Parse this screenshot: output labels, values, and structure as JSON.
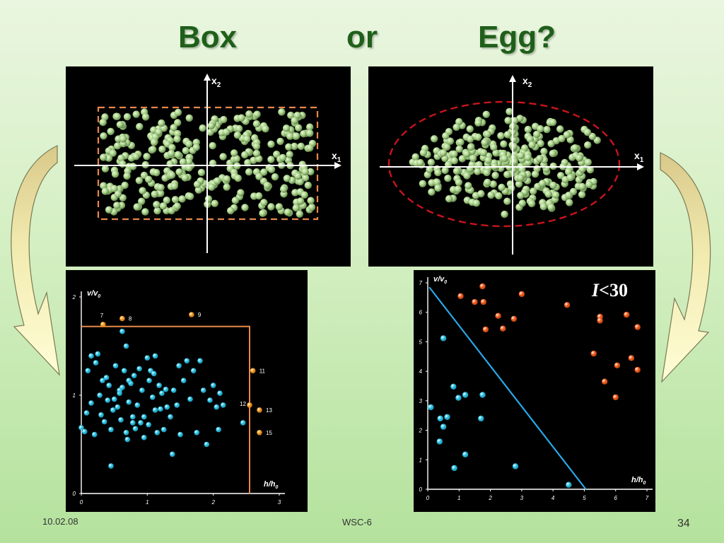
{
  "slide": {
    "title": {
      "word1": "Box",
      "word2": "or",
      "word3": "Egg?"
    },
    "footer": {
      "date": "10.02.08",
      "center": "WSC-6",
      "page": "34"
    }
  },
  "box_diagram": {
    "axis_x_label": "x",
    "axis_x_sub": "1",
    "axis_y_label": "x",
    "axis_y_sub": "2",
    "dot_color": "#a9d38a",
    "boundary_color": "#e8874a"
  },
  "egg_diagram": {
    "axis_x_label": "x",
    "axis_x_sub": "1",
    "axis_y_label": "x",
    "axis_y_sub": "2",
    "dot_color": "#a9d38a",
    "boundary_color": "#c8151c"
  },
  "chart_data": [
    {
      "type": "scatter",
      "title": "",
      "xlabel": "h/h",
      "xlabel_sub": "0",
      "ylabel": "v/v",
      "ylabel_sub": "0",
      "xlim": [
        0,
        3
      ],
      "ylim": [
        0,
        2
      ],
      "xticks": [
        "0",
        "1",
        "2",
        "3"
      ],
      "yticks": [
        "0",
        "1",
        "2"
      ],
      "boundary": {
        "x": 2.55,
        "y": 1.7,
        "color": "#e8874a"
      },
      "series": [
        {
          "color": "#29c3e8",
          "points": [
            [
              0.0,
              0.67
            ],
            [
              0.05,
              0.63
            ],
            [
              0.08,
              0.82
            ],
            [
              0.1,
              1.25
            ],
            [
              0.15,
              1.4
            ],
            [
              0.22,
              1.33
            ],
            [
              0.25,
              1.42
            ],
            [
              0.28,
              1.0
            ],
            [
              0.3,
              0.8
            ],
            [
              0.32,
              1.15
            ],
            [
              0.35,
              0.73
            ],
            [
              0.38,
              1.18
            ],
            [
              0.4,
              0.95
            ],
            [
              0.42,
              1.1
            ],
            [
              0.45,
              0.65
            ],
            [
              0.48,
              0.85
            ],
            [
              0.5,
              0.96
            ],
            [
              0.52,
              1.3
            ],
            [
              0.55,
              0.88
            ],
            [
              0.58,
              1.02
            ],
            [
              0.6,
              0.75
            ],
            [
              0.62,
              1.08
            ],
            [
              0.65,
              1.25
            ],
            [
              0.68,
              0.62
            ],
            [
              0.7,
              0.55
            ],
            [
              0.72,
              0.93
            ],
            [
              0.75,
              1.12
            ],
            [
              0.78,
              0.78
            ],
            [
              0.8,
              1.2
            ],
            [
              0.82,
              0.66
            ],
            [
              0.85,
              0.9
            ],
            [
              0.88,
              1.27
            ],
            [
              0.9,
              0.72
            ],
            [
              0.92,
              1.05
            ],
            [
              0.95,
              0.57
            ],
            [
              1.0,
              1.38
            ],
            [
              1.02,
              0.7
            ],
            [
              1.05,
              1.25
            ],
            [
              1.08,
              0.98
            ],
            [
              1.1,
              1.22
            ],
            [
              1.12,
              0.85
            ],
            [
              1.15,
              0.62
            ],
            [
              1.18,
              1.1
            ],
            [
              1.2,
              0.86
            ],
            [
              1.22,
              1.02
            ],
            [
              1.25,
              0.65
            ],
            [
              1.28,
              1.06
            ],
            [
              1.3,
              0.88
            ],
            [
              1.35,
              0.78
            ],
            [
              1.38,
              0.4
            ],
            [
              1.4,
              1.05
            ],
            [
              1.45,
              0.9
            ],
            [
              1.48,
              1.3
            ],
            [
              1.5,
              0.6
            ],
            [
              1.55,
              1.15
            ],
            [
              1.6,
              1.35
            ],
            [
              1.65,
              0.96
            ],
            [
              1.7,
              1.25
            ],
            [
              1.75,
              0.62
            ],
            [
              1.8,
              1.35
            ],
            [
              1.85,
              1.05
            ],
            [
              1.9,
              0.5
            ],
            [
              1.95,
              0.95
            ],
            [
              2.0,
              1.1
            ],
            [
              2.05,
              0.88
            ],
            [
              2.08,
              0.65
            ],
            [
              2.1,
              1.02
            ],
            [
              2.15,
              0.9
            ],
            [
              0.2,
              0.6
            ],
            [
              0.15,
              0.92
            ],
            [
              0.45,
              0.28
            ],
            [
              0.62,
              1.65
            ],
            [
              0.68,
              1.5
            ],
            [
              1.12,
              1.4
            ],
            [
              2.45,
              0.72
            ],
            [
              0.58,
              1.05
            ],
            [
              0.78,
              0.72
            ],
            [
              0.95,
              0.78
            ],
            [
              1.03,
              1.15
            ],
            [
              0.72,
              1.15
            ]
          ]
        },
        {
          "color": "#f59a1a",
          "points": [
            [
              0.33,
              1.72
            ],
            [
              0.62,
              1.78
            ],
            [
              1.67,
              1.82
            ],
            [
              2.6,
              1.25
            ],
            [
              2.55,
              0.9
            ],
            [
              2.7,
              0.85
            ],
            [
              2.7,
              0.62
            ]
          ],
          "labels": [
            "7",
            "8",
            "9",
            "11",
            "12",
            "13",
            "15"
          ]
        }
      ]
    },
    {
      "type": "scatter",
      "title": "",
      "annotation": {
        "symbol": "I",
        "text": "<30"
      },
      "xlabel": "h/h",
      "xlabel_sub": "0",
      "ylabel": "v/v",
      "ylabel_sub": "0",
      "xlim": [
        0,
        7
      ],
      "ylim": [
        0,
        7
      ],
      "xticks": [
        "0",
        "1",
        "2",
        "3",
        "4",
        "5",
        "6",
        "7"
      ],
      "yticks": [
        "0",
        "1",
        "2",
        "3",
        "4",
        "5",
        "6",
        "7"
      ],
      "line": {
        "x1": 0.05,
        "y1": 6.85,
        "x2": 5.05,
        "y2": 0.0,
        "color": "#29a8e8"
      },
      "series": [
        {
          "color": "#29c3e8",
          "points": [
            [
              0.1,
              2.78
            ],
            [
              0.5,
              5.12
            ],
            [
              0.82,
              3.48
            ],
            [
              0.98,
              3.1
            ],
            [
              1.2,
              3.2
            ],
            [
              1.75,
              3.2
            ],
            [
              0.4,
              2.4
            ],
            [
              0.62,
              2.45
            ],
            [
              0.5,
              2.12
            ],
            [
              0.38,
              1.62
            ],
            [
              1.2,
              1.18
            ],
            [
              0.85,
              0.72
            ],
            [
              1.7,
              2.4
            ],
            [
              2.8,
              0.78
            ],
            [
              4.5,
              0.15
            ]
          ]
        },
        {
          "color": "#f55a1a",
          "points": [
            [
              1.05,
              6.55
            ],
            [
              1.5,
              6.35
            ],
            [
              1.75,
              6.88
            ],
            [
              1.78,
              6.35
            ],
            [
              2.25,
              5.88
            ],
            [
              2.4,
              5.45
            ],
            [
              2.75,
              5.78
            ],
            [
              3.0,
              6.62
            ],
            [
              1.85,
              5.42
            ],
            [
              4.45,
              6.25
            ],
            [
              5.5,
              5.85
            ],
            [
              5.5,
              5.72
            ],
            [
              6.35,
              5.92
            ],
            [
              6.7,
              5.5
            ],
            [
              5.3,
              4.6
            ],
            [
              6.5,
              4.45
            ],
            [
              6.05,
              4.2
            ],
            [
              6.7,
              4.05
            ],
            [
              5.65,
              3.65
            ],
            [
              6.0,
              3.12
            ]
          ]
        }
      ]
    }
  ]
}
